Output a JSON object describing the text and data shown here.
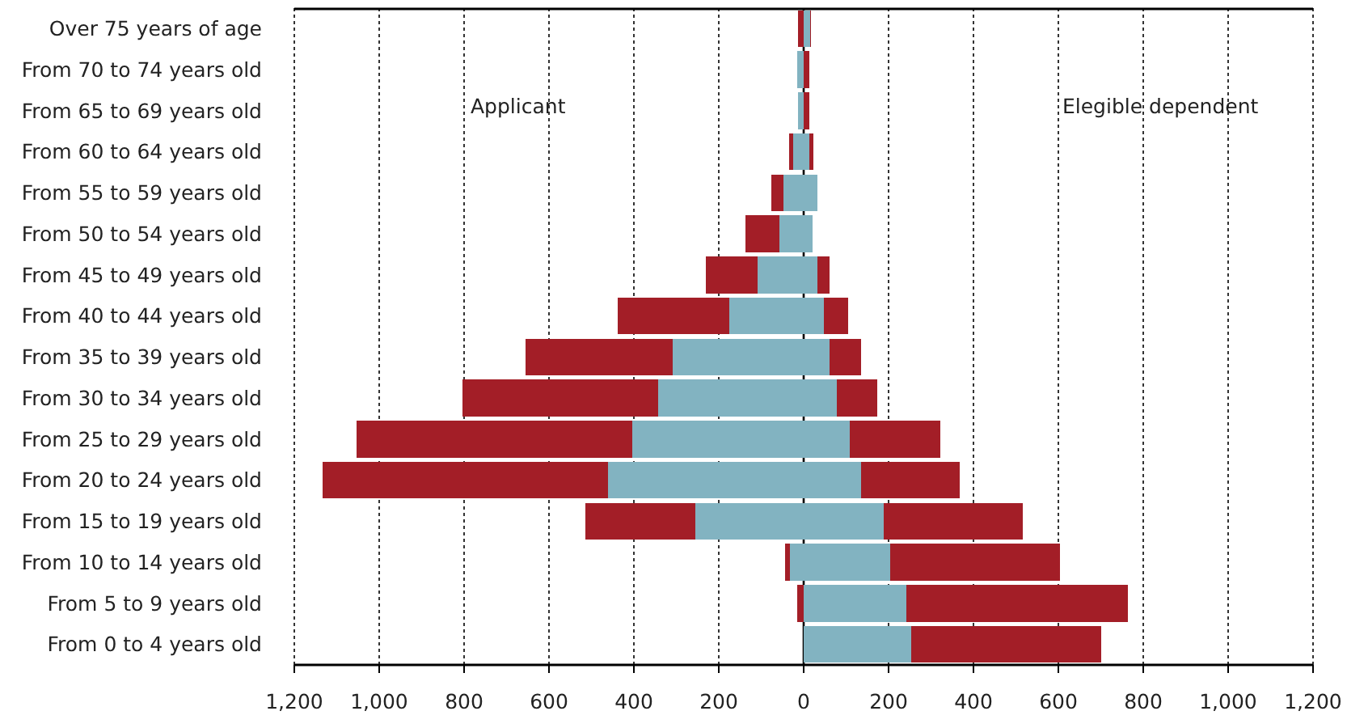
{
  "chart_data": {
    "type": "bar",
    "orientation": "horizontal",
    "stacked": true,
    "categories": [
      "Over 75 years of age",
      "From 70 to 74 years old",
      "From 65 to 69 years old",
      "From 60 to 64 years old",
      "From 55 to 59 years old",
      "From 50 to 54 years old",
      "From 45 to 49 years old",
      "From 40 to 44 years old",
      "From 35 to 39 years old",
      "From 30 to 34 years old",
      "From 25 to 29 years old",
      "From 20 to 24 years old",
      "From 15 to 19 years old",
      "From 10 to 14 years old",
      "From 5 to 9 years old",
      "From 0 to 4 years old"
    ],
    "series": [
      {
        "color": "#82b3c1",
        "values": [
          0,
          -16,
          -13,
          -24,
          -47,
          -58,
          -108,
          -176,
          -309,
          -343,
          -404,
          -461,
          -256,
          -32,
          0,
          0
        ]
      },
      {
        "color": "#a31e27",
        "values": [
          -13,
          0,
          0,
          -11,
          -30,
          -80,
          -122,
          -262,
          -346,
          -460,
          -650,
          -673,
          -258,
          -11,
          -16,
          0
        ]
      },
      {
        "color": "#82b3c1",
        "values": [
          15,
          0,
          0,
          14,
          33,
          21,
          33,
          48,
          60,
          79,
          109,
          136,
          189,
          204,
          242,
          253
        ]
      },
      {
        "color": "#a31e27",
        "values": [
          3,
          13,
          13,
          8,
          0,
          0,
          27,
          57,
          76,
          95,
          213,
          232,
          327,
          399,
          521,
          448
        ]
      }
    ],
    "xlim": [
      -1200,
      1200
    ],
    "xticks": [
      {
        "value": -1200,
        "label": "1,200"
      },
      {
        "value": -1000,
        "label": "1,000"
      },
      {
        "value": -800,
        "label": "800"
      },
      {
        "value": -600,
        "label": "600"
      },
      {
        "value": -400,
        "label": "400"
      },
      {
        "value": -200,
        "label": "200"
      },
      0,
      200,
      400,
      600,
      800,
      {
        "value": 1000,
        "label": "1,000"
      },
      {
        "value": 1200,
        "label": "1,200"
      }
    ],
    "grid": "x",
    "annotations": [
      "Applicant",
      "Elegible dependent"
    ]
  }
}
